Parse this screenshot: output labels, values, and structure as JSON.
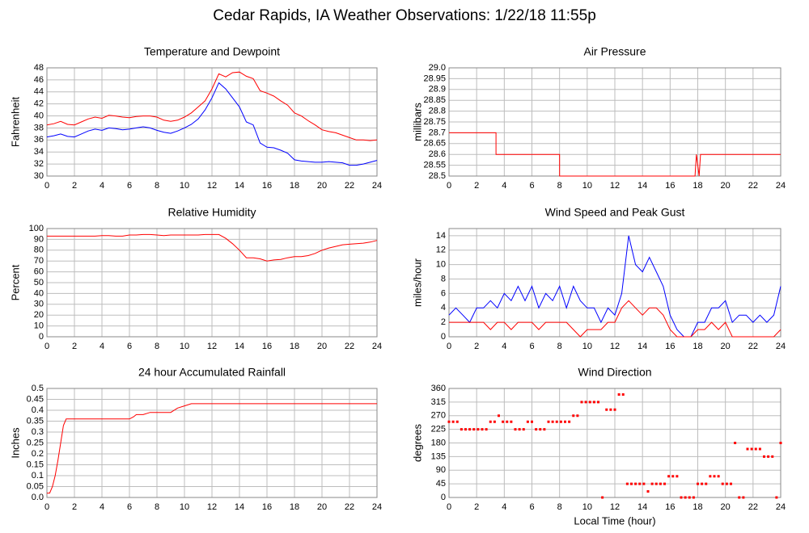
{
  "title": "Cedar Rapids, IA Weather Observations: 1/22/18 11:55p",
  "chart_data": [
    {
      "type": "line",
      "title": "Temperature and Dewpoint",
      "ylabel": "Fahrenheit",
      "xlim": [
        0,
        24
      ],
      "xticks": [
        0,
        2,
        4,
        6,
        8,
        10,
        12,
        14,
        16,
        18,
        20,
        22,
        24
      ],
      "ylim": [
        30,
        48
      ],
      "yticks": [
        30,
        32,
        34,
        36,
        38,
        40,
        42,
        44,
        46,
        48
      ],
      "grid": true,
      "x": [
        0,
        0.5,
        1,
        1.5,
        2,
        2.5,
        3,
        3.5,
        4,
        4.5,
        5,
        5.5,
        6,
        6.5,
        7,
        7.5,
        8,
        8.5,
        9,
        9.5,
        10,
        10.5,
        11,
        11.5,
        12,
        12.5,
        13,
        13.5,
        14,
        14.5,
        15,
        15.5,
        16,
        16.5,
        17,
        17.5,
        18,
        18.5,
        19,
        19.5,
        20,
        20.5,
        21,
        21.5,
        22,
        22.5,
        23,
        23.5,
        24
      ],
      "series": [
        {
          "color": "#ff0000",
          "values": [
            38.5,
            38.7,
            39.1,
            38.6,
            38.5,
            39,
            39.5,
            39.8,
            39.6,
            40.1,
            40,
            39.8,
            39.7,
            39.9,
            40,
            40,
            39.8,
            39.3,
            39.1,
            39.3,
            39.8,
            40.5,
            41.5,
            42.5,
            44.5,
            47,
            46.5,
            47.2,
            47.3,
            46.6,
            46.2,
            44.2,
            43.8,
            43.3,
            42.5,
            41.8,
            40.5,
            40,
            39.2,
            38.5,
            37.7,
            37.4,
            37.2,
            36.8,
            36.4,
            36,
            36,
            35.9,
            36
          ]
        },
        {
          "color": "#0000ff",
          "values": [
            36.5,
            36.7,
            37,
            36.6,
            36.5,
            37,
            37.5,
            37.8,
            37.6,
            38,
            37.9,
            37.7,
            37.8,
            38,
            38.2,
            38,
            37.6,
            37.3,
            37.1,
            37.5,
            38,
            38.6,
            39.5,
            41,
            43,
            45.5,
            44.5,
            43,
            41.5,
            39,
            38.5,
            35.5,
            34.8,
            34.7,
            34.3,
            33.8,
            32.7,
            32.5,
            32.4,
            32.3,
            32.3,
            32.4,
            32.3,
            32.2,
            31.8,
            31.8,
            32,
            32.3,
            32.6
          ]
        }
      ]
    },
    {
      "type": "line",
      "title": "Air Pressure",
      "ylabel": "millibars",
      "xlim": [
        0,
        24
      ],
      "xticks": [
        0,
        2,
        4,
        6,
        8,
        10,
        12,
        14,
        16,
        18,
        20,
        22,
        24
      ],
      "ylim": [
        28.5,
        29
      ],
      "yticks": [
        28.5,
        28.55,
        28.6,
        28.65,
        28.7,
        28.75,
        28.8,
        28.85,
        28.9,
        28.95,
        {
          "value": 29,
          "label": "29.0"
        }
      ],
      "grid": true,
      "x": [
        0,
        3.4,
        3.4,
        8,
        8,
        17.8,
        17.9,
        18.1,
        18.2,
        24
      ],
      "series": [
        {
          "color": "#ff0000",
          "values": [
            28.7,
            28.7,
            28.6,
            28.6,
            28.5,
            28.5,
            28.6,
            28.5,
            28.6,
            28.6
          ]
        }
      ]
    },
    {
      "type": "line",
      "title": "Relative Humidity",
      "ylabel": "Percent",
      "xlim": [
        0,
        24
      ],
      "xticks": [
        0,
        2,
        4,
        6,
        8,
        10,
        12,
        14,
        16,
        18,
        20,
        22,
        24
      ],
      "ylim": [
        0,
        100
      ],
      "yticks": [
        0,
        10,
        20,
        30,
        40,
        50,
        60,
        70,
        80,
        90,
        100
      ],
      "grid": true,
      "x": [
        0,
        0.5,
        1,
        1.5,
        2,
        2.5,
        3,
        3.5,
        4,
        4.5,
        5,
        5.5,
        6,
        6.5,
        7,
        7.5,
        8,
        8.5,
        9,
        9.5,
        10,
        10.5,
        11,
        11.5,
        12,
        12.5,
        13,
        13.5,
        14,
        14.5,
        15,
        15.5,
        16,
        16.5,
        17,
        17.5,
        18,
        18.5,
        19,
        19.5,
        20,
        20.5,
        21,
        21.5,
        22,
        22.5,
        23,
        23.5,
        24
      ],
      "series": [
        {
          "color": "#ff0000",
          "values": [
            93,
            93,
            93,
            93,
            93,
            93,
            93,
            93,
            93.5,
            93.5,
            93,
            93,
            94,
            94,
            94.5,
            94.5,
            94,
            93.5,
            94,
            94,
            94,
            94,
            94,
            94.5,
            94.5,
            94.5,
            91,
            86,
            80,
            73,
            73,
            72,
            70,
            71,
            71.5,
            73,
            74,
            74,
            75,
            77,
            80,
            82,
            83.5,
            85,
            85.5,
            86,
            86.5,
            87.5,
            89
          ]
        }
      ]
    },
    {
      "type": "line",
      "title": "Wind Speed and Peak Gust",
      "ylabel": "miles/hour",
      "xlim": [
        0,
        24
      ],
      "xticks": [
        0,
        2,
        4,
        6,
        8,
        10,
        12,
        14,
        16,
        18,
        20,
        22,
        24
      ],
      "ylim": [
        0,
        15
      ],
      "yticks": [
        0,
        2,
        4,
        6,
        8,
        10,
        12,
        14
      ],
      "grid": true,
      "x": [
        0,
        0.5,
        1,
        1.5,
        2,
        2.5,
        3,
        3.5,
        4,
        4.5,
        5,
        5.5,
        6,
        6.5,
        7,
        7.5,
        8,
        8.5,
        9,
        9.5,
        10,
        10.5,
        11,
        11.5,
        12,
        12.5,
        13,
        13.5,
        14,
        14.5,
        15,
        15.5,
        16,
        16.5,
        17,
        17.5,
        18,
        18.5,
        19,
        19.5,
        20,
        20.5,
        21,
        21.5,
        22,
        22.5,
        23,
        23.5,
        24
      ],
      "series": [
        {
          "color": "#0000ff",
          "values": [
            3,
            4,
            3,
            2,
            4,
            4,
            5,
            4,
            6,
            5,
            7,
            5,
            7,
            4,
            6,
            5,
            7,
            4,
            7,
            5,
            4,
            4,
            2,
            4,
            3,
            6,
            14,
            10,
            9,
            11,
            9,
            7,
            3,
            1,
            0,
            0,
            2,
            2,
            4,
            4,
            5,
            2,
            3,
            3,
            2,
            3,
            2,
            3,
            7
          ]
        },
        {
          "color": "#ff0000",
          "values": [
            2,
            2,
            2,
            2,
            2,
            2,
            1,
            2,
            2,
            1,
            2,
            2,
            2,
            1,
            2,
            2,
            2,
            2,
            1,
            0,
            1,
            1,
            1,
            2,
            2,
            4,
            5,
            4,
            3,
            4,
            4,
            3,
            1,
            0,
            0,
            0,
            1,
            1,
            2,
            1,
            2,
            0,
            0,
            0,
            0,
            0,
            0,
            0,
            1
          ]
        }
      ]
    },
    {
      "type": "line",
      "title": "24 hour Accumulated Rainfall",
      "ylabel": "Inches",
      "xlim": [
        0,
        24
      ],
      "xticks": [
        0,
        2,
        4,
        6,
        8,
        10,
        12,
        14,
        16,
        18,
        20,
        22,
        24
      ],
      "ylim": [
        0,
        0.5
      ],
      "yticks": [
        {
          "value": 0,
          "label": "0.0"
        },
        0.05,
        0.1,
        0.15,
        0.2,
        0.25,
        0.3,
        0.35,
        0.4,
        0.45,
        0.5
      ],
      "grid": true,
      "x": [
        0,
        0.2,
        0.4,
        0.6,
        0.8,
        1,
        1.2,
        1.4,
        6,
        6.3,
        6.5,
        7,
        7.5,
        9,
        9.5,
        10,
        10.5,
        24
      ],
      "series": [
        {
          "color": "#ff0000",
          "values": [
            0.02,
            0.02,
            0.05,
            0.1,
            0.17,
            0.25,
            0.33,
            0.36,
            0.36,
            0.37,
            0.38,
            0.38,
            0.39,
            0.39,
            0.41,
            0.42,
            0.43,
            0.43
          ]
        }
      ]
    },
    {
      "type": "scatter",
      "title": "Wind Direction",
      "ylabel": "degrees",
      "xlabel": "Local Time (hour)",
      "xlim": [
        0,
        24
      ],
      "xticks": [
        0,
        2,
        4,
        6,
        8,
        10,
        12,
        14,
        16,
        18,
        20,
        22,
        24
      ],
      "ylim": [
        0,
        360
      ],
      "yticks": [
        0,
        45,
        90,
        135,
        180,
        225,
        270,
        315,
        360
      ],
      "grid": true,
      "x": [
        0,
        0.3,
        0.6,
        0.9,
        1.2,
        1.5,
        1.8,
        2.1,
        2.4,
        2.7,
        3,
        3.3,
        3.6,
        3.9,
        4.2,
        4.5,
        4.8,
        5.1,
        5.4,
        5.7,
        6,
        6.3,
        6.6,
        6.9,
        7.2,
        7.5,
        7.8,
        8.1,
        8.4,
        8.7,
        9,
        9.3,
        9.6,
        9.9,
        10.2,
        10.5,
        10.8,
        11.1,
        11.4,
        11.7,
        12,
        12.3,
        12.6,
        12.9,
        13.2,
        13.5,
        13.8,
        14.1,
        14.4,
        14.7,
        15,
        15.3,
        15.6,
        15.9,
        16.2,
        16.5,
        16.8,
        17.1,
        17.4,
        17.7,
        18,
        18.3,
        18.6,
        18.9,
        19.2,
        19.5,
        19.8,
        20.1,
        20.4,
        20.7,
        21,
        21.3,
        21.6,
        21.9,
        22.2,
        22.5,
        22.8,
        23.1,
        23.4,
        23.7,
        24
      ],
      "series": [
        {
          "color": "#ff0000",
          "values": [
            250,
            250,
            250,
            225,
            225,
            225,
            225,
            225,
            225,
            225,
            250,
            250,
            270,
            250,
            250,
            250,
            225,
            225,
            225,
            250,
            250,
            225,
            225,
            225,
            250,
            250,
            250,
            250,
            250,
            250,
            270,
            270,
            315,
            315,
            315,
            315,
            315,
            0,
            290,
            290,
            290,
            340,
            340,
            45,
            45,
            45,
            45,
            45,
            20,
            45,
            45,
            45,
            45,
            70,
            70,
            70,
            0,
            0,
            0,
            0,
            45,
            45,
            45,
            70,
            70,
            70,
            45,
            45,
            45,
            180,
            0,
            0,
            160,
            160,
            160,
            160,
            135,
            135,
            135,
            0,
            180
          ]
        }
      ]
    }
  ]
}
